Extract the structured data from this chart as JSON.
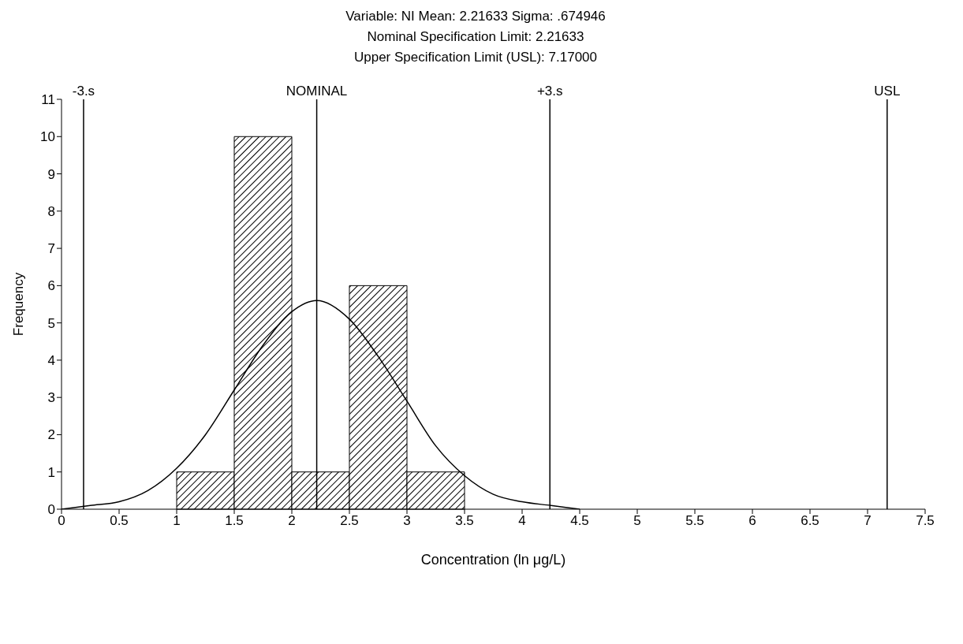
{
  "chart_data": {
    "type": "histogram",
    "title": "Variable: NI Mean: 2.21633 Sigma: .674946",
    "subtitle": "Nominal Specification Limit: 2.21633\nUpper Specification Limit (USL): 7.17000",
    "xlabel": "Concentration (ln μg/L)",
    "ylabel": "Frequency",
    "bins": [
      1,
      1.5,
      2,
      2.5,
      3,
      3.5
    ],
    "values": [
      1,
      10,
      1,
      6,
      1
    ],
    "color": "#000000",
    "series": [
      {
        "type": "line",
        "color": "#000000",
        "x": [
          0,
          0.25,
          0.5,
          0.75,
          1,
          1.25,
          1.5,
          1.75,
          2,
          2.216,
          2.5,
          2.75,
          3,
          3.25,
          3.5,
          3.75,
          4,
          4.25,
          4.5
        ],
        "values": [
          0,
          0.1,
          0.2,
          0.5,
          1.1,
          2,
          3.2,
          4.4,
          5.3,
          5.6,
          5.1,
          4.1,
          2.9,
          1.7,
          0.9,
          0.4,
          0.2,
          0.1,
          0
        ]
      }
    ],
    "ref_lines": [
      {
        "axis": "x",
        "value": 0.19149,
        "label": "-3.s",
        "color": "#000000"
      },
      {
        "axis": "x",
        "value": 2.21633,
        "label": "NOMINAL",
        "color": "#000000"
      },
      {
        "axis": "x",
        "value": 4.24117,
        "label": "+3.s",
        "color": "#000000"
      },
      {
        "axis": "x",
        "value": 7.17,
        "label": "USL",
        "color": "#000000"
      }
    ],
    "xlim": [
      0,
      7.5
    ],
    "xticks": [
      0,
      0.5,
      1,
      1.5,
      2,
      2.5,
      3,
      3.5,
      4,
      4.5,
      5,
      5.5,
      6,
      6.5,
      7,
      7.5
    ],
    "ylim": [
      0,
      11
    ],
    "yticks": [
      0,
      1,
      2,
      3,
      4,
      5,
      6,
      7,
      8,
      9,
      10,
      11
    ]
  }
}
